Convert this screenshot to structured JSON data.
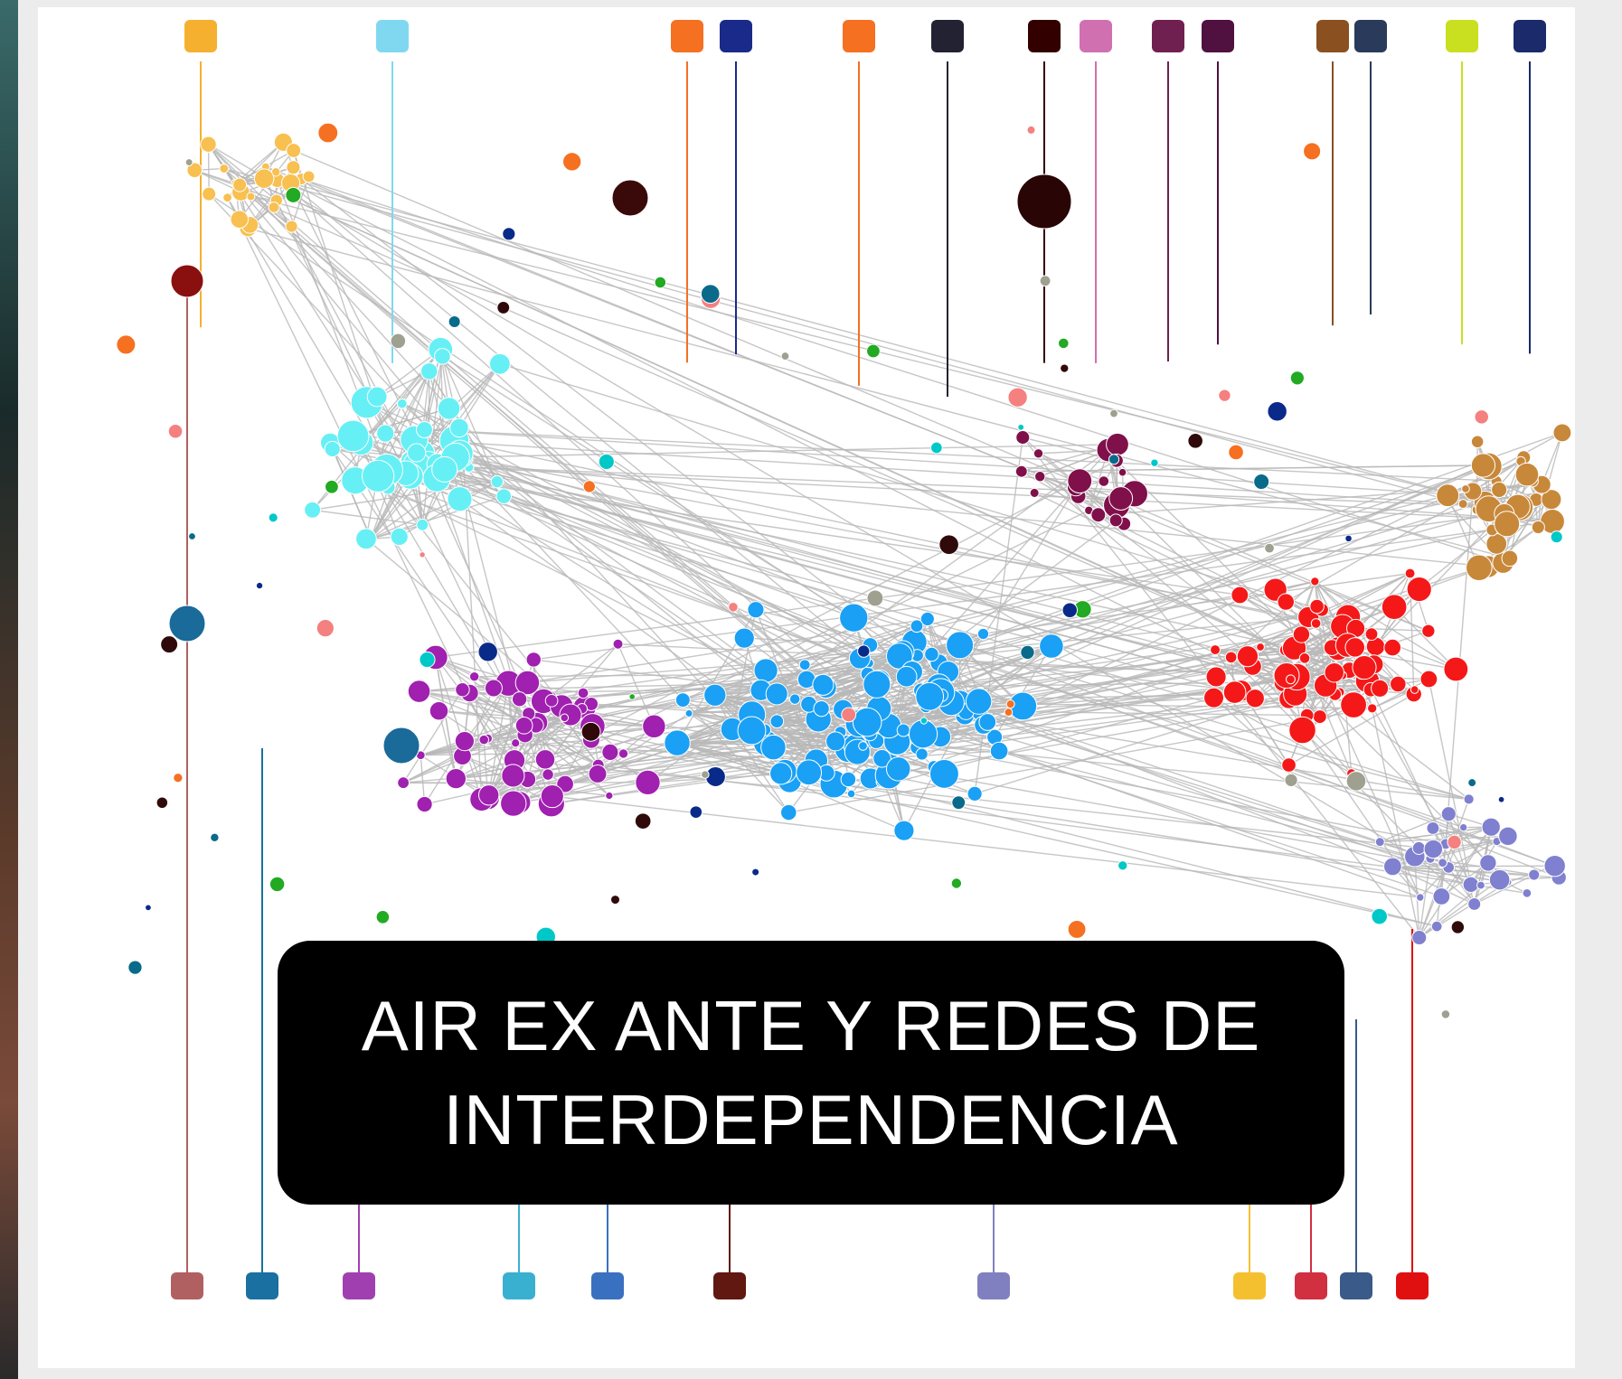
{
  "title": {
    "lines": [
      "AIR EX ANTE Y REDES DE",
      "INTERDEPENDENCIA"
    ]
  }
}
